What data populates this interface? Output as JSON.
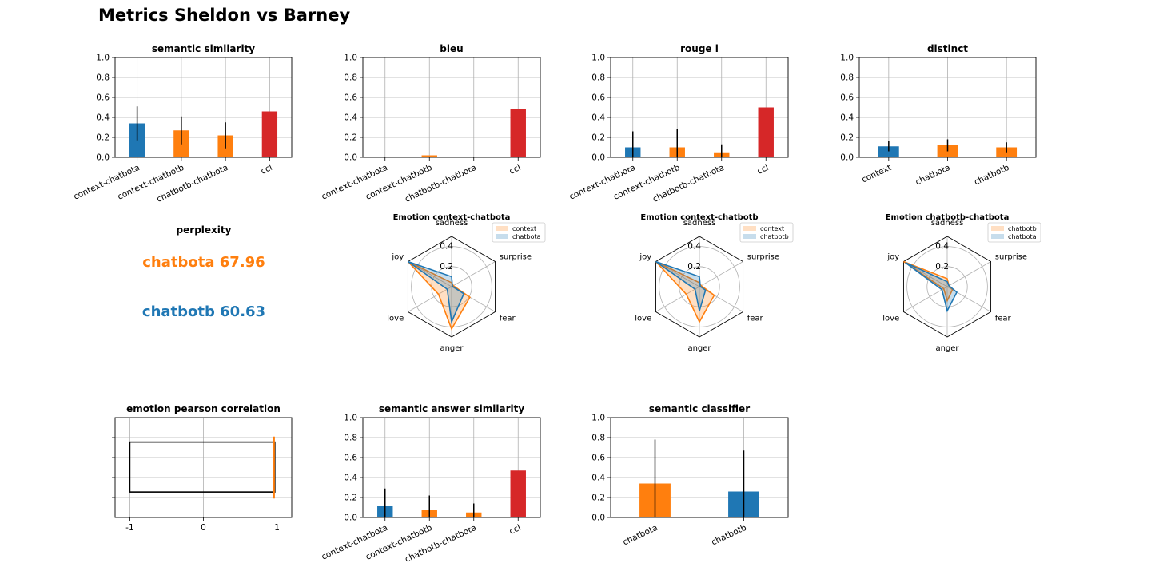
{
  "figure": {
    "title": "Metrics Sheldon vs Barney"
  },
  "colors": {
    "blue": "#1f77b4",
    "orange": "#ff7f0e",
    "red": "#d62728",
    "black": "#000000",
    "grid": "#b0b0b0"
  },
  "perplexity": {
    "title": "perplexity",
    "lines": [
      {
        "text": "chatbota 67.96",
        "color": "#ff7f0e"
      },
      {
        "text": "chatbotb 60.63",
        "color": "#1f77b4"
      }
    ]
  },
  "chart_data": [
    {
      "id": "semantic-similarity",
      "type": "bar",
      "title": "semantic similarity",
      "ylim": [
        0,
        1
      ],
      "yticks": [
        "0.0",
        "0.2",
        "0.4",
        "0.6",
        "0.8",
        "1.0"
      ],
      "grid": true,
      "categories": [
        "context-chatbota",
        "context-chatbotb",
        "chatbotb-chatbota",
        "ccl"
      ],
      "values": [
        0.34,
        0.27,
        0.22,
        0.46
      ],
      "errors": [
        0.17,
        0.14,
        0.13,
        0
      ],
      "colors": [
        "#1f77b4",
        "#ff7f0e",
        "#ff7f0e",
        "#d62728"
      ]
    },
    {
      "id": "bleu",
      "type": "bar",
      "title": "bleu",
      "ylim": [
        0,
        1
      ],
      "yticks": [
        "0.0",
        "0.2",
        "0.4",
        "0.6",
        "0.8",
        "1.0"
      ],
      "grid": true,
      "categories": [
        "context-chatbota",
        "context-chatbotb",
        "chatbotb-chatbota",
        "ccl"
      ],
      "values": [
        0.0,
        0.02,
        0.0,
        0.48
      ],
      "errors": [
        0,
        0,
        0,
        0
      ],
      "colors": [
        "#1f77b4",
        "#ff7f0e",
        "#ff7f0e",
        "#d62728"
      ]
    },
    {
      "id": "rouge-l",
      "type": "bar",
      "title": "rouge l",
      "ylim": [
        0,
        1
      ],
      "yticks": [
        "0.0",
        "0.2",
        "0.4",
        "0.6",
        "0.8",
        "1.0"
      ],
      "grid": true,
      "categories": [
        "context-chatbota",
        "context-chatbotb",
        "chatbotb-chatbota",
        "ccl"
      ],
      "values": [
        0.1,
        0.1,
        0.05,
        0.5
      ],
      "errors": [
        0.16,
        0.18,
        0.08,
        0
      ],
      "colors": [
        "#1f77b4",
        "#ff7f0e",
        "#ff7f0e",
        "#d62728"
      ]
    },
    {
      "id": "distinct",
      "type": "bar",
      "title": "distinct",
      "ylim": [
        0,
        1
      ],
      "yticks": [
        "0.0",
        "0.2",
        "0.4",
        "0.6",
        "0.8",
        "1.0"
      ],
      "grid": true,
      "categories": [
        "context",
        "chatbota",
        "chatbotb"
      ],
      "values": [
        0.11,
        0.12,
        0.1
      ],
      "errors": [
        0.05,
        0.06,
        0.05
      ],
      "colors": [
        "#1f77b4",
        "#ff7f0e",
        "#ff7f0e"
      ]
    },
    {
      "id": "emotion-context-chatbota",
      "type": "radar",
      "title": "Emotion context-chatbota",
      "axes": [
        "sadness",
        "surprise",
        "fear",
        "anger",
        "love",
        "joy"
      ],
      "rticks": [
        "0.2",
        "0.4"
      ],
      "rmax": 0.5,
      "series": [
        {
          "name": "context",
          "color": "#ff7f0e",
          "values": [
            0.04,
            0.02,
            0.21,
            0.42,
            0.15,
            0.5
          ]
        },
        {
          "name": "chatbota",
          "color": "#1f77b4",
          "values": [
            0.1,
            0.01,
            0.14,
            0.35,
            0.05,
            0.5
          ]
        }
      ]
    },
    {
      "id": "emotion-context-chatbotb",
      "type": "radar",
      "title": "Emotion context-chatbotb",
      "axes": [
        "sadness",
        "surprise",
        "fear",
        "anger",
        "love",
        "joy"
      ],
      "rticks": [
        "0.2",
        "0.4"
      ],
      "rmax": 0.5,
      "series": [
        {
          "name": "context",
          "color": "#ff7f0e",
          "values": [
            0.04,
            0.02,
            0.17,
            0.35,
            0.15,
            0.5
          ]
        },
        {
          "name": "chatbotb",
          "color": "#1f77b4",
          "values": [
            0.1,
            0.01,
            0.07,
            0.24,
            0.05,
            0.5
          ]
        }
      ]
    },
    {
      "id": "emotion-chatbotb-chatbota",
      "type": "radar",
      "title": "Emotion chatbotb-chatbota",
      "axes": [
        "sadness",
        "surprise",
        "fear",
        "anger",
        "love",
        "joy"
      ],
      "rticks": [
        "0.2",
        "0.4"
      ],
      "rmax": 0.5,
      "series": [
        {
          "name": "chatbotb",
          "color": "#ff7f0e",
          "values": [
            0.08,
            0.02,
            0.06,
            0.14,
            0.04,
            0.5
          ]
        },
        {
          "name": "chatbota",
          "color": "#1f77b4",
          "values": [
            0.05,
            0.02,
            0.11,
            0.24,
            0.06,
            0.48
          ]
        }
      ]
    },
    {
      "id": "emotion-pearson-correlation",
      "type": "boxplot",
      "title": "emotion pearson correlation",
      "xlim": [
        -1.2,
        1.2
      ],
      "xticks": [
        -1,
        0,
        1
      ],
      "xticklabels": [
        "-1",
        "0",
        "1"
      ],
      "grid": true,
      "box": {
        "q1": -1.0,
        "q3": 0.97,
        "median": 0.96,
        "whisker_low": -1.0,
        "whisker_high": 0.97
      }
    },
    {
      "id": "semantic-answer-similarity",
      "type": "bar",
      "title": "semantic answer similarity",
      "ylim": [
        0,
        1
      ],
      "yticks": [
        "0.0",
        "0.2",
        "0.4",
        "0.6",
        "0.8",
        "1.0"
      ],
      "grid": true,
      "categories": [
        "context-chatbota",
        "context-chatbotb",
        "chatbotb-chatbota",
        "ccl"
      ],
      "values": [
        0.12,
        0.08,
        0.05,
        0.47
      ],
      "errors": [
        0.17,
        0.14,
        0.09,
        0
      ],
      "colors": [
        "#1f77b4",
        "#ff7f0e",
        "#ff7f0e",
        "#d62728"
      ]
    },
    {
      "id": "semantic-classifier",
      "type": "bar",
      "title": "semantic classifier",
      "ylim": [
        0,
        1
      ],
      "yticks": [
        "0.0",
        "0.2",
        "0.4",
        "0.6",
        "0.8",
        "1.0"
      ],
      "grid": true,
      "categories": [
        "chatbota",
        "chatbotb"
      ],
      "values": [
        0.34,
        0.26
      ],
      "errors": [
        0.44,
        0.41
      ],
      "colors": [
        "#ff7f0e",
        "#1f77b4"
      ]
    }
  ]
}
